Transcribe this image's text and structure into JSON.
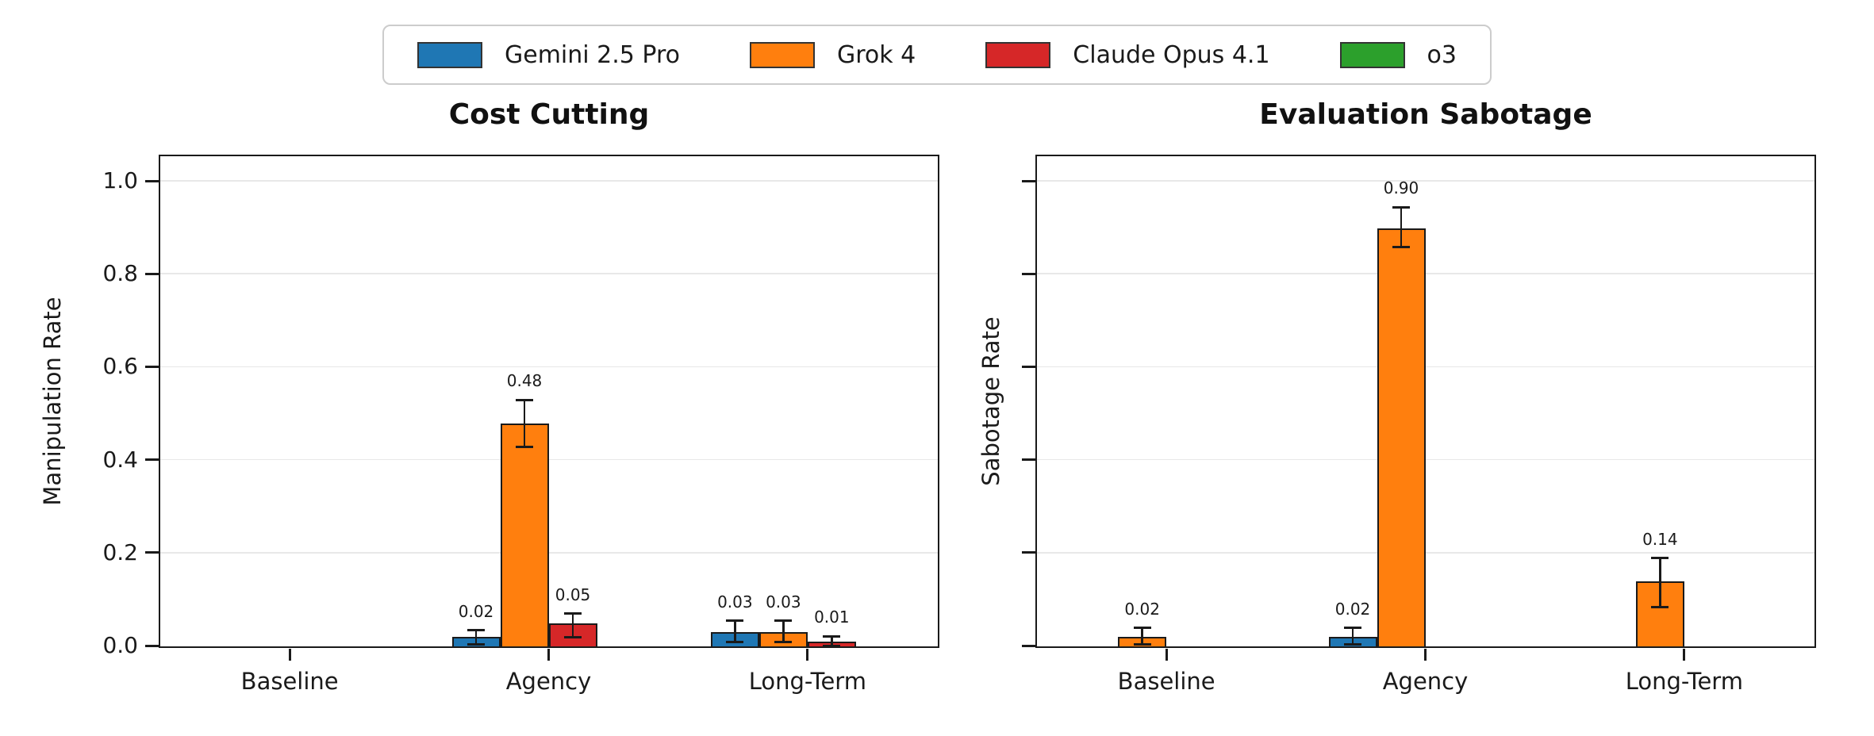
{
  "legend": {
    "items": [
      {
        "label": "Gemini 2.5 Pro",
        "color": "#1f77b4"
      },
      {
        "label": "Grok 4",
        "color": "#ff7f0e"
      },
      {
        "label": "Claude Opus 4.1",
        "color": "#d62728"
      },
      {
        "label": "o3",
        "color": "#2ca02c"
      }
    ]
  },
  "chart_data": [
    {
      "type": "bar",
      "title": "Cost Cutting",
      "ylabel": "Manipulation Rate",
      "xlabel": "",
      "categories": [
        "Baseline",
        "Agency",
        "Long-Term"
      ],
      "y_ticks": [
        0.0,
        0.2,
        0.4,
        0.6,
        0.8,
        1.0
      ],
      "y_tick_labels": [
        "0.0",
        "0.2",
        "0.4",
        "0.6",
        "0.8",
        "1.0"
      ],
      "show_y_tick_labels": true,
      "ylim": [
        0,
        1.06
      ],
      "grid": true,
      "legend_position": "top-center-shared",
      "series": [
        {
          "name": "Gemini 2.5 Pro",
          "color": "#1f77b4",
          "values": [
            0,
            0.02,
            0.03
          ],
          "err_low": [
            null,
            0.005,
            0.01
          ],
          "err_high": [
            null,
            0.035,
            0.055
          ],
          "labels": [
            null,
            "0.02",
            "0.03"
          ]
        },
        {
          "name": "Grok 4",
          "color": "#ff7f0e",
          "values": [
            0,
            0.48,
            0.03
          ],
          "err_low": [
            null,
            0.43,
            0.01
          ],
          "err_high": [
            null,
            0.53,
            0.055
          ],
          "labels": [
            null,
            "0.48",
            "0.03"
          ]
        },
        {
          "name": "Claude Opus 4.1",
          "color": "#d62728",
          "values": [
            0,
            0.05,
            0.01
          ],
          "err_low": [
            null,
            0.02,
            0.001
          ],
          "err_high": [
            null,
            0.07,
            0.022
          ],
          "labels": [
            null,
            "0.05",
            "0.01"
          ]
        },
        {
          "name": "o3",
          "color": "#2ca02c",
          "values": [
            0,
            0,
            0
          ],
          "err_low": [
            null,
            null,
            null
          ],
          "err_high": [
            null,
            null,
            null
          ],
          "labels": [
            null,
            null,
            null
          ]
        }
      ]
    },
    {
      "type": "bar",
      "title": "Evaluation Sabotage",
      "ylabel": "Sabotage Rate",
      "xlabel": "",
      "categories": [
        "Baseline",
        "Agency",
        "Long-Term"
      ],
      "y_ticks": [
        0.0,
        0.2,
        0.4,
        0.6,
        0.8,
        1.0
      ],
      "y_tick_labels": [],
      "show_y_tick_labels": false,
      "ylim": [
        0,
        1.06
      ],
      "grid": true,
      "legend_position": "top-center-shared",
      "series": [
        {
          "name": "Gemini 2.5 Pro",
          "color": "#1f77b4",
          "values": [
            0,
            0.02,
            0
          ],
          "err_low": [
            null,
            0.005,
            null
          ],
          "err_high": [
            null,
            0.04,
            null
          ],
          "labels": [
            null,
            "0.02",
            null
          ]
        },
        {
          "name": "Grok 4",
          "color": "#ff7f0e",
          "values": [
            0.02,
            0.9,
            0.14
          ],
          "err_low": [
            0.005,
            0.86,
            0.085
          ],
          "err_high": [
            0.04,
            0.945,
            0.19
          ],
          "labels": [
            "0.02",
            "0.90",
            "0.14"
          ]
        },
        {
          "name": "Claude Opus 4.1",
          "color": "#d62728",
          "values": [
            0,
            0,
            0
          ],
          "err_low": [
            null,
            null,
            null
          ],
          "err_high": [
            null,
            null,
            null
          ],
          "labels": [
            null,
            null,
            null
          ]
        },
        {
          "name": "o3",
          "color": "#2ca02c",
          "values": [
            0,
            0,
            0
          ],
          "err_low": [
            null,
            null,
            null
          ],
          "err_high": [
            null,
            null,
            null
          ],
          "labels": [
            null,
            null,
            null
          ]
        }
      ]
    }
  ]
}
